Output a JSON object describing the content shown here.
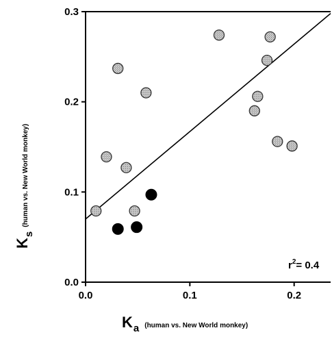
{
  "chart_data": {
    "type": "scatter",
    "xlim": [
      0.0,
      0.235
    ],
    "ylim": [
      0.0,
      0.3
    ],
    "x_ticks": [
      0.0,
      0.1,
      0.2
    ],
    "x_tick_labels": [
      "0.0",
      "0.1",
      "0.2"
    ],
    "y_ticks": [
      0.0,
      0.1,
      0.2,
      0.3
    ],
    "y_tick_labels": [
      "0.0",
      "0.1",
      "0.2",
      "0.3"
    ],
    "xlabel_main": "K",
    "xlabel_sub": "a",
    "xlabel_paren": "(human vs. New World monkey)",
    "ylabel_main": "K",
    "ylabel_sub": "s",
    "ylabel_paren": "(human vs. New World monkey)",
    "annotation": {
      "prefix": "r",
      "superscript": "2",
      "suffix": "= 0.4"
    },
    "grid": false,
    "series": [
      {
        "marker": "grey-circle",
        "color": "#b5b5b5",
        "points": [
          {
            "x": 0.01,
            "y": 0.079
          },
          {
            "x": 0.02,
            "y": 0.139
          },
          {
            "x": 0.031,
            "y": 0.237
          },
          {
            "x": 0.039,
            "y": 0.127
          },
          {
            "x": 0.047,
            "y": 0.079
          },
          {
            "x": 0.058,
            "y": 0.21
          },
          {
            "x": 0.128,
            "y": 0.274
          },
          {
            "x": 0.162,
            "y": 0.19
          },
          {
            "x": 0.165,
            "y": 0.206
          },
          {
            "x": 0.174,
            "y": 0.246
          },
          {
            "x": 0.177,
            "y": 0.272
          },
          {
            "x": 0.184,
            "y": 0.156
          },
          {
            "x": 0.198,
            "y": 0.151
          }
        ]
      },
      {
        "marker": "black-circle",
        "color": "#000000",
        "points": [
          {
            "x": 0.031,
            "y": 0.059
          },
          {
            "x": 0.049,
            "y": 0.061
          },
          {
            "x": 0.063,
            "y": 0.097
          }
        ]
      }
    ],
    "regression_line": {
      "x0": 0.0,
      "y0": 0.07,
      "x1": 0.235,
      "y1": 0.298
    }
  }
}
